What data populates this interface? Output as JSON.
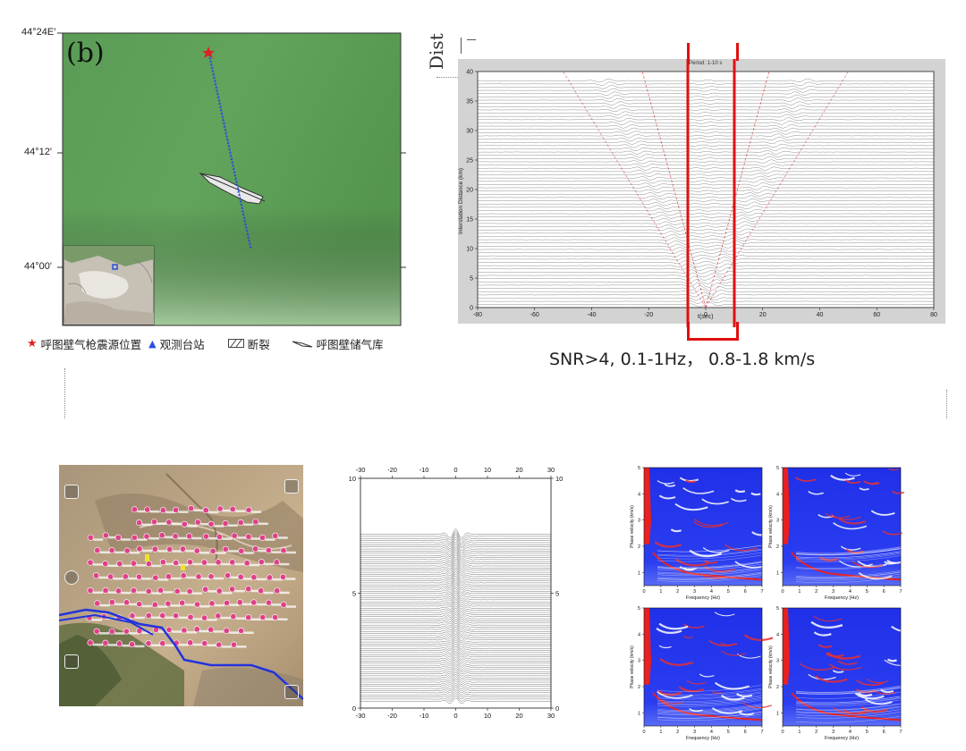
{
  "map": {
    "panel_label": "(b)",
    "lat_ticks": [
      "44°24E'",
      "44°12'",
      "44°00'"
    ],
    "colors": {
      "terrain": "#5ea05a",
      "source": "#e02020",
      "station": "#2a4fd8"
    }
  },
  "legend": {
    "source": "呼图壁气枪震源位置",
    "station": "观测台站",
    "fault": "断裂",
    "reservoir": "呼图壁储气库"
  },
  "top_fragment": "Dist",
  "snr_caption": "SNR>4, 0.1-1Hz，  0.8-1.8 km/s",
  "seismogram": {
    "title": "Period: 1-10 s",
    "xlabel": "t(sec)",
    "ylabel": "Interstation Distance (km)",
    "xticks": [
      "-80",
      "-60",
      "-40",
      "-20",
      "0",
      "20",
      "40",
      "60",
      "80"
    ],
    "yticks": [
      "0",
      "5",
      "10",
      "15",
      "20",
      "25",
      "30",
      "35",
      "40"
    ],
    "highlight_color": "#e01010"
  },
  "wave_panel": {
    "xticks": [
      "-30",
      "-20",
      "-10",
      "0",
      "10",
      "20",
      "30"
    ],
    "yticks": [
      "0",
      "5",
      "10"
    ]
  },
  "dispersion": {
    "xlabel": "Frequency (Hz)",
    "ylabel": "Phase velocity (km/s)",
    "xticks": [
      "0",
      "1",
      "2",
      "3",
      "4",
      "5",
      "6",
      "7"
    ],
    "yticks": [
      "1",
      "2",
      "3",
      "4",
      "5"
    ]
  },
  "chart_data": {
    "type": "line",
    "title": "Period: 1-10 s",
    "xlabel": "t(sec)",
    "ylabel": "Interstation Distance (km)",
    "xlim": [
      -80,
      80
    ],
    "ylim": [
      0,
      40
    ],
    "highlight_window_t": [
      -8,
      10
    ]
  }
}
